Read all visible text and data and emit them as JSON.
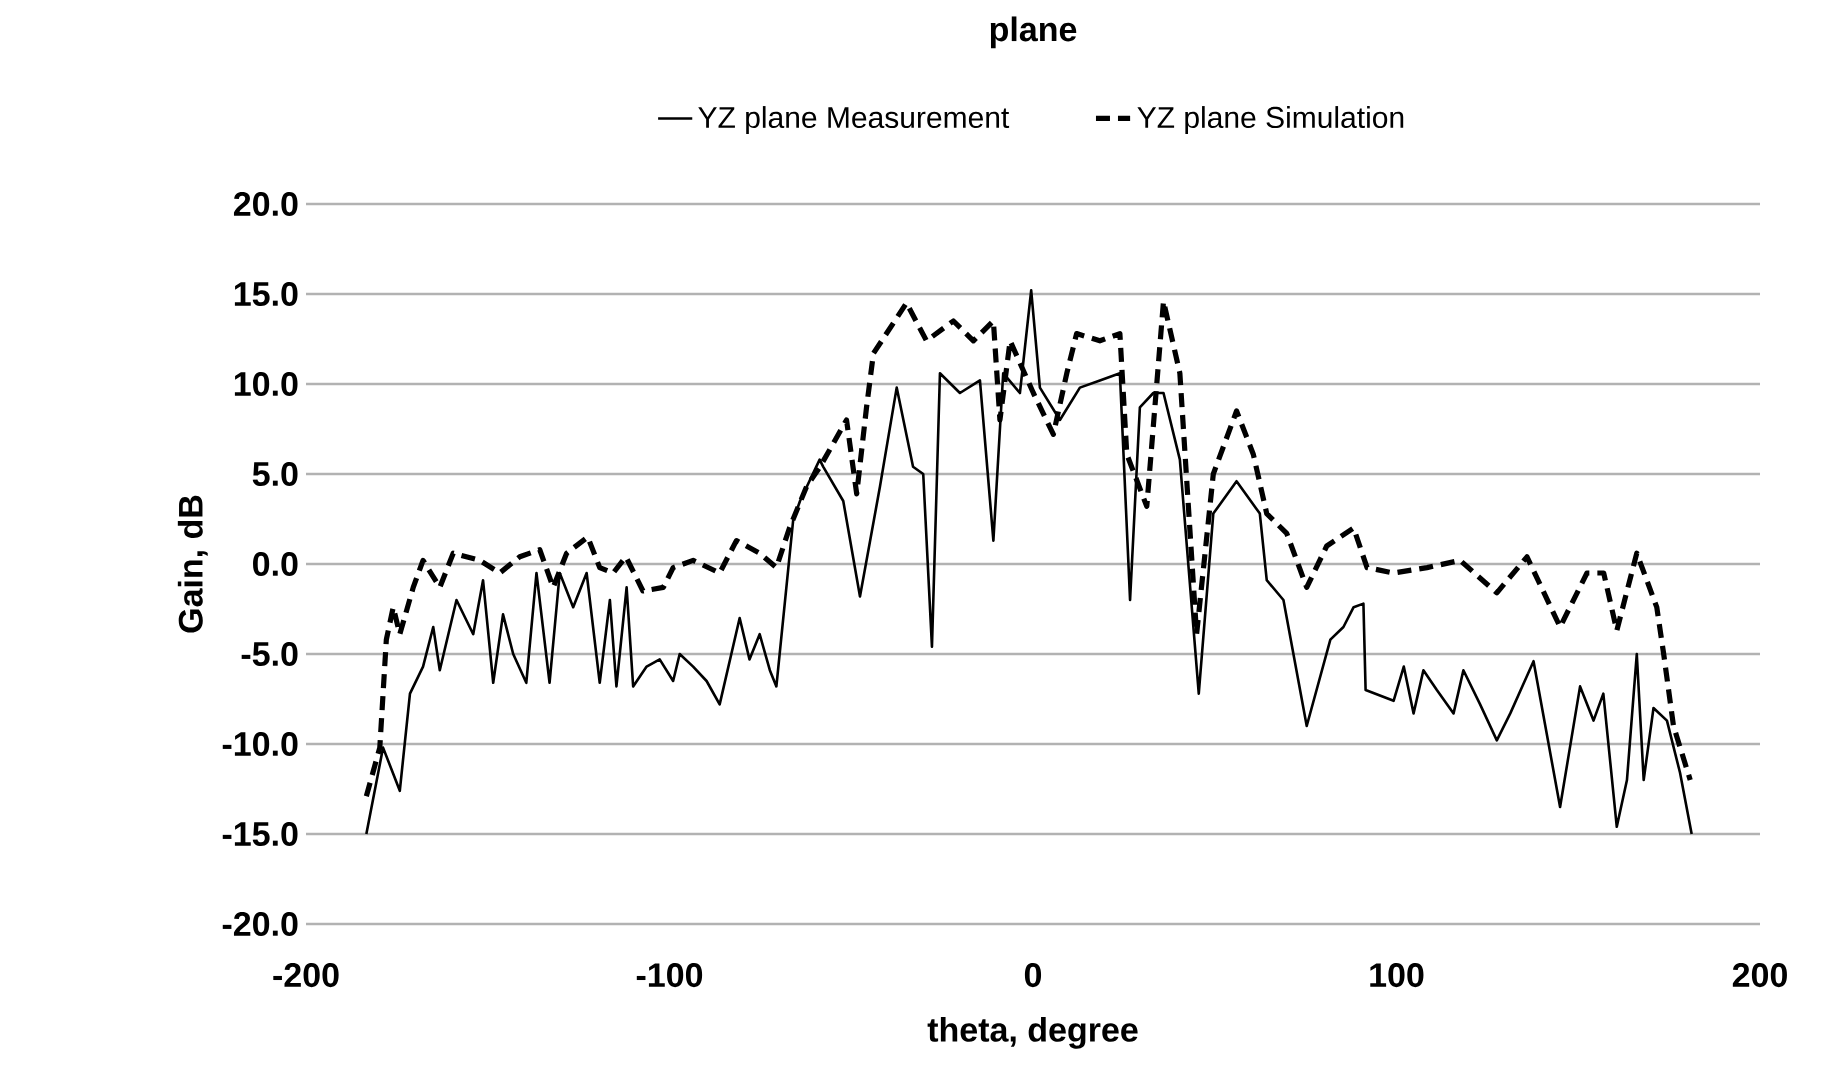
{
  "chart_data": {
    "type": "line",
    "title": "plane",
    "xlabel": "theta, degree",
    "ylabel": "Gain, dB",
    "xlim": [
      -200,
      200
    ],
    "xticks": [
      -200,
      -100,
      0,
      100,
      200
    ],
    "ylim": [
      -20,
      20
    ],
    "yticks": [
      {
        "value": -20,
        "label": "-20.0"
      },
      {
        "value": -15,
        "label": "-15.0"
      },
      {
        "value": -10,
        "label": "-10.0"
      },
      {
        "value": -5,
        "label": "-5.0"
      },
      {
        "value": 0,
        "label": "0.0"
      },
      {
        "value": 5,
        "label": "5.0"
      },
      {
        "value": 10,
        "label": "10.0"
      },
      {
        "value": 15,
        "label": "15.0"
      },
      {
        "value": 20,
        "label": "20.0"
      }
    ],
    "grid": "y",
    "legend": "top",
    "marker": "none",
    "series": [
      {
        "name": "YZ plane Measurement",
        "color": "#000000",
        "line_style": "solid",
        "x": [
          -183.4,
          -178.8,
          -174.2,
          -171.4,
          -167.8,
          -165,
          -163.2,
          -158.6,
          -154,
          -151.3,
          -148.5,
          -145.8,
          -143,
          -139.4,
          -136.6,
          -133,
          -130.2,
          -126.5,
          -122.8,
          -119.2,
          -116.4,
          -114.6,
          -111.8,
          -110,
          -106.3,
          -102.7,
          -99,
          -97.2,
          -93.5,
          -89.8,
          -86.2,
          -80.7,
          -78,
          -75.2,
          -72.4,
          -70.6,
          -66,
          -64.1,
          -58.7,
          -57.7,
          -52.2,
          -47.6,
          -42.1,
          -37.5,
          -33,
          -30.2,
          -27.8,
          -25.6,
          -20.1,
          -14.6,
          -10.9,
          -8.2,
          -3.6,
          -0.5,
          1.9,
          7.4,
          12.9,
          18.4,
          23.9,
          26.7,
          29.4,
          33.1,
          35.9,
          40.4,
          45.6,
          49.6,
          56,
          62.4,
          64.3,
          68.9,
          75.3,
          81.8,
          85.4,
          88.2,
          90.9,
          91.5,
          99.2,
          102,
          104.7,
          107.4,
          111.1,
          115.7,
          118.4,
          123,
          127.6,
          131.3,
          137.7,
          145,
          150.5,
          154.2,
          156.9,
          160.6,
          163.4,
          166.1,
          168,
          170.7,
          174.4,
          178,
          181.2
        ],
        "values": [
          -15,
          -10.2,
          -12.6,
          -7.2,
          -5.7,
          -3.5,
          -5.9,
          -2,
          -3.9,
          -0.9,
          -6.6,
          -2.8,
          -5,
          -6.6,
          -0.5,
          -6.6,
          -0.5,
          -2.4,
          -0.5,
          -6.6,
          -2,
          -6.8,
          -1.3,
          -6.8,
          -5.7,
          -5.3,
          -6.5,
          -5,
          -5.7,
          -6.5,
          -7.8,
          -3,
          -5.3,
          -3.9,
          -5.9,
          -6.8,
          2.4,
          3.5,
          5.8,
          5.4,
          3.5,
          -1.8,
          4.3,
          9.8,
          5.4,
          5,
          -4.6,
          10.6,
          9.5,
          10.2,
          1.3,
          10.6,
          9.5,
          15.2,
          9.8,
          8,
          9.8,
          10.2,
          10.6,
          -2,
          8.7,
          9.5,
          9.5,
          5.8,
          -7.2,
          2.8,
          4.6,
          2.8,
          -0.9,
          -2,
          -9,
          -4.2,
          -3.5,
          -2.4,
          -2.2,
          -7,
          -7.6,
          -5.7,
          -8.3,
          -5.9,
          -7,
          -8.3,
          -5.9,
          -7.8,
          -9.8,
          -8.3,
          -5.4,
          -13.5,
          -6.8,
          -8.7,
          -7.2,
          -14.6,
          -12,
          -5,
          -12,
          -8,
          -8.7,
          -11.6,
          -15
        ]
      },
      {
        "name": "YZ plane Simulation",
        "color": "#000000",
        "line_style": "dashed",
        "x": [
          -183.4,
          -179.7,
          -177.9,
          -176,
          -174.2,
          -170.5,
          -167.8,
          -163.2,
          -159.5,
          -152.2,
          -146.7,
          -141.2,
          -135.7,
          -132,
          -128.3,
          -122.5,
          -119.2,
          -115.5,
          -112,
          -107.3,
          -101.7,
          -99,
          -93.5,
          -86.2,
          -81.6,
          -75.2,
          -70.6,
          -67,
          -62.3,
          -58.6,
          -51.3,
          -48.5,
          -45.8,
          -43.9,
          -34.8,
          -29.3,
          -21.9,
          -16.4,
          -10.9,
          -9.1,
          -6.3,
          0.1,
          5.6,
          9.3,
          12,
          18.4,
          23.9,
          25.8,
          31.3,
          35.9,
          40.4,
          45,
          49.6,
          56,
          60.6,
          64.3,
          69.8,
          75.3,
          80.8,
          88.2,
          91.9,
          99.2,
          108.4,
          117.5,
          127.6,
          135.9,
          145,
          152.4,
          157,
          160.6,
          166.1,
          171.6,
          173.5,
          176.2,
          180.8
        ],
        "values": [
          -12.9,
          -10.2,
          -4.2,
          -2.4,
          -3.9,
          -1.3,
          0.2,
          -1.3,
          0.6,
          0.2,
          -0.5,
          0.4,
          0.8,
          -1.3,
          0.6,
          1.5,
          -0.2,
          -0.5,
          0.4,
          -1.5,
          -1.3,
          -0.2,
          0.2,
          -0.5,
          1.3,
          0.6,
          -0.2,
          2,
          4.3,
          5.4,
          8,
          3.9,
          8.7,
          11.7,
          14.5,
          12.4,
          13.5,
          12.4,
          13.5,
          8,
          12.4,
          9.5,
          7.2,
          10.6,
          12.8,
          12.4,
          12.8,
          6.1,
          3.2,
          14.6,
          10.6,
          -3.9,
          5,
          8.5,
          6.1,
          2.8,
          1.7,
          -1.3,
          1,
          2,
          -0.2,
          -0.5,
          -0.2,
          0.2,
          -1.6,
          0.4,
          -3.5,
          -0.5,
          -0.5,
          -3.7,
          0.6,
          -2.4,
          -5,
          -9,
          -12
        ]
      }
    ]
  }
}
